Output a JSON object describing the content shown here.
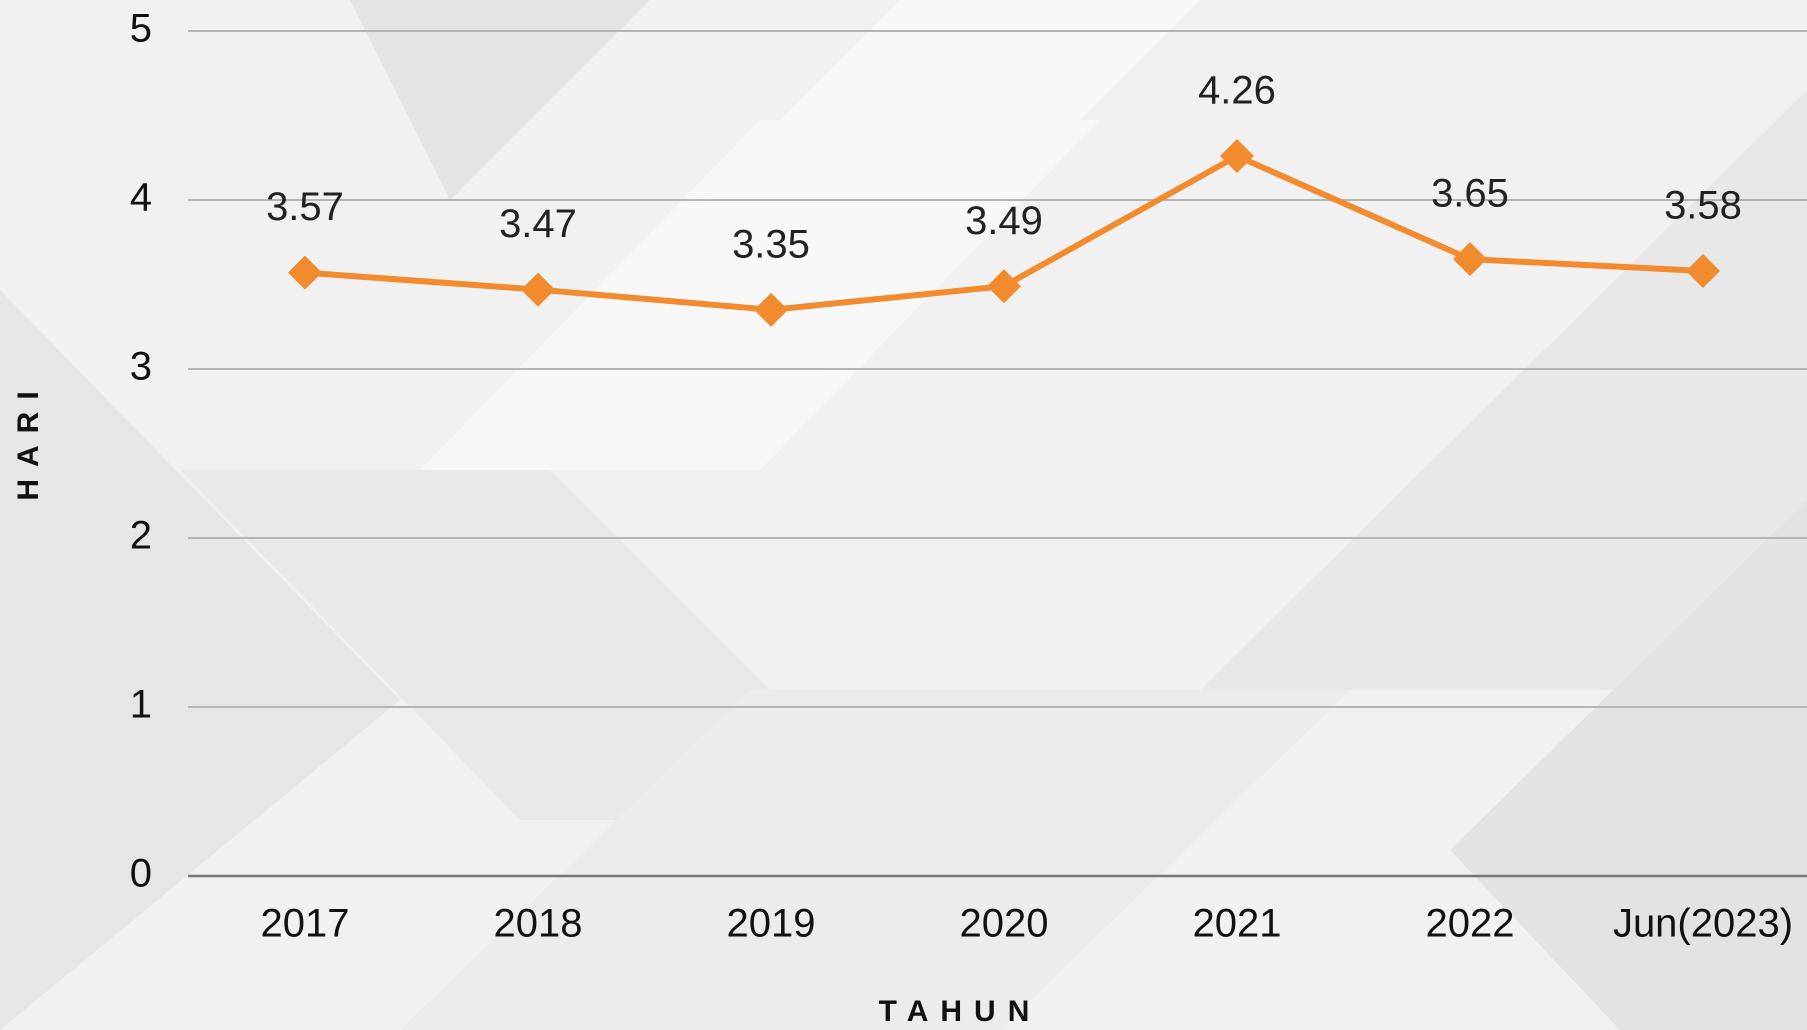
{
  "chart_data": {
    "type": "line",
    "categories": [
      "2017",
      "2018",
      "2019",
      "2020",
      "2021",
      "2022",
      "Jun(2023)"
    ],
    "series": [
      {
        "name": "HARI",
        "color": "#f28a2e",
        "values": [
          3.57,
          3.47,
          3.35,
          3.49,
          4.26,
          3.65,
          3.58
        ]
      }
    ],
    "ylim": [
      0,
      5
    ],
    "yticks": [
      0,
      1,
      2,
      3,
      4,
      5
    ],
    "grid": true,
    "y_label": "HARI",
    "x_label": "TAHUN",
    "data_labels": true
  }
}
